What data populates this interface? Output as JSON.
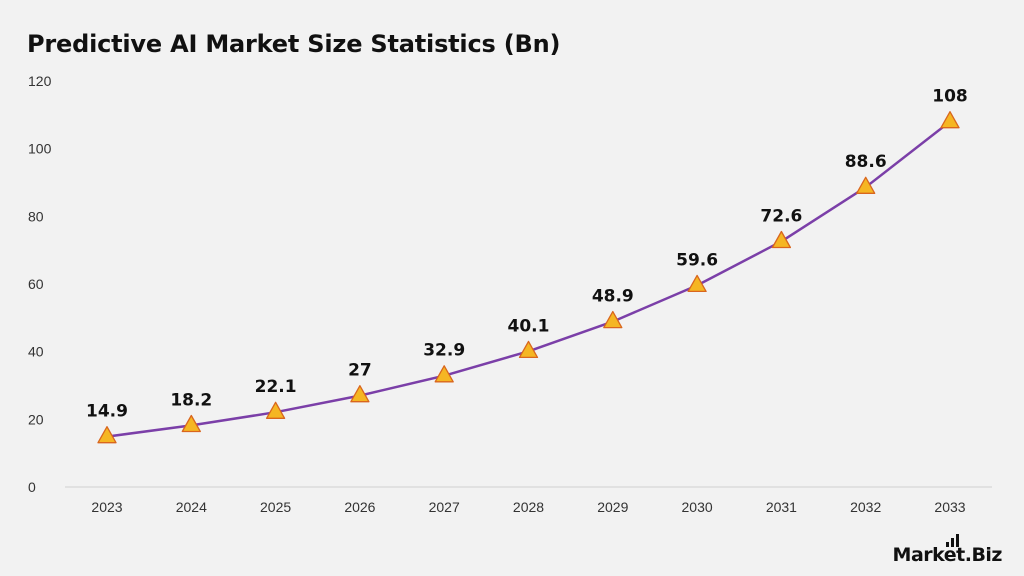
{
  "chart_data": {
    "type": "line",
    "title": "Predictive AI Market Size Statistics (Bn)",
    "xlabel": "",
    "ylabel": "",
    "categories": [
      "2023",
      "2024",
      "2025",
      "2026",
      "2027",
      "2028",
      "2029",
      "2030",
      "2031",
      "2032",
      "2033"
    ],
    "series": [
      {
        "values": [
          14.9,
          18.2,
          22.1,
          27,
          32.9,
          40.1,
          48.9,
          59.6,
          72.6,
          88.6,
          108
        ],
        "labels": [
          "14.9",
          "18.2",
          "22.1",
          "27",
          "32.9",
          "40.1",
          "48.9",
          "59.6",
          "72.6",
          "88.6",
          "108"
        ],
        "line_color": "#7b3fa8",
        "marker": "triangle",
        "marker_fill": "#f5b623",
        "marker_stroke": "#d9661e"
      }
    ],
    "ylim": [
      0,
      120
    ],
    "yticks": [
      "0",
      "20",
      "40",
      "60",
      "80",
      "100",
      "120"
    ],
    "grid": false,
    "legend": "none"
  },
  "logo": {
    "text": "Market.Biz"
  }
}
